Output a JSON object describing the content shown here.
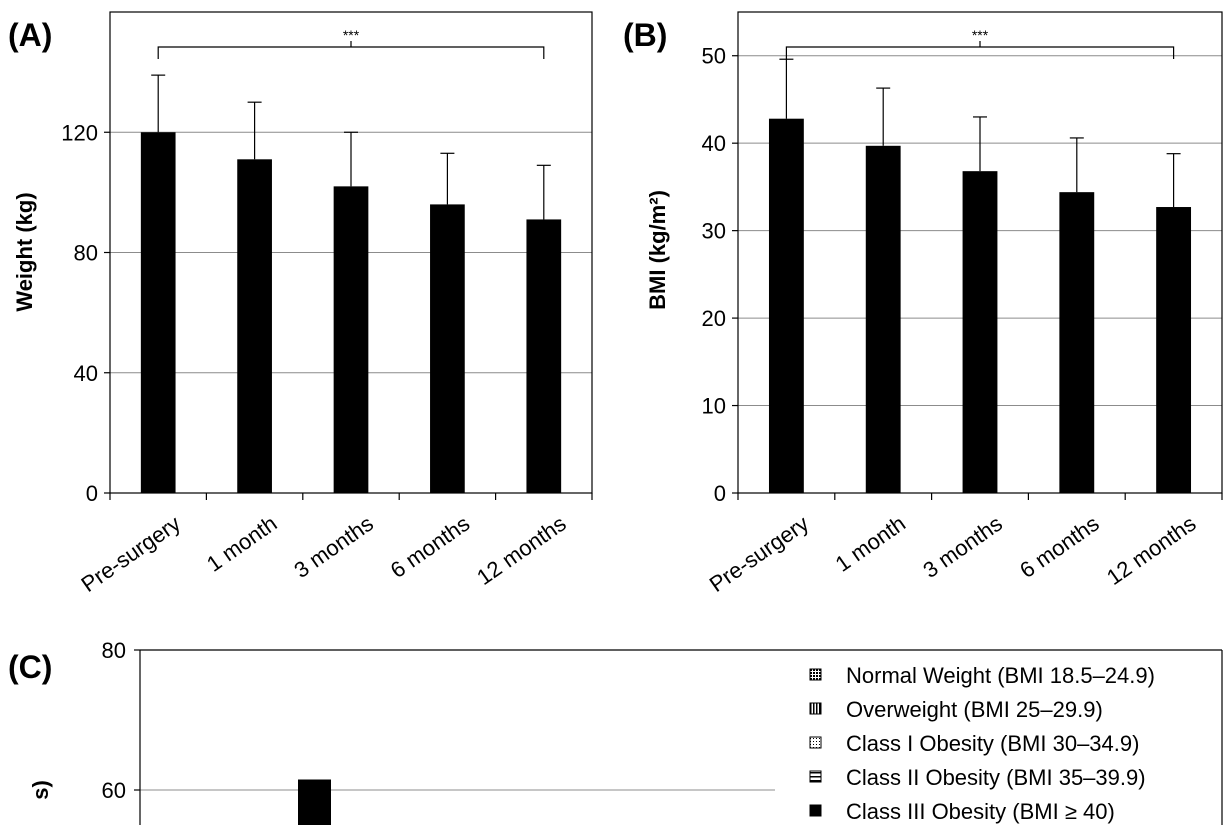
{
  "panels": {
    "a_label": "(A)",
    "b_label": "(B)",
    "c_label": "(C)"
  },
  "chart_data": [
    {
      "type": "bar",
      "panel": "(A)",
      "categories": [
        "Pre-surgery",
        "1 month",
        "3 months",
        "6 months",
        "12 months"
      ],
      "values": [
        120,
        111,
        102,
        96,
        91
      ],
      "errors": [
        19,
        19,
        18,
        17,
        18
      ],
      "ylabel": "Weight (kg)",
      "ylim": [
        0,
        160
      ],
      "yticks": [
        0,
        40,
        80,
        120
      ],
      "grid": true,
      "significance": {
        "label": "***",
        "from": "Pre-surgery",
        "to": "12 months"
      },
      "color": "#000000"
    },
    {
      "type": "bar",
      "panel": "(B)",
      "categories": [
        "Pre-surgery",
        "1 month",
        "3 months",
        "6 months",
        "12 months"
      ],
      "values": [
        42.8,
        39.7,
        36.8,
        34.4,
        32.7
      ],
      "errors": [
        6.8,
        6.6,
        6.2,
        6.2,
        6.1
      ],
      "ylabel": "BMI (kg/m²)",
      "ylim": [
        0,
        55
      ],
      "yticks": [
        0,
        10,
        20,
        30,
        40,
        50
      ],
      "grid": true,
      "significance": {
        "label": "***",
        "from": "Pre-surgery",
        "to": "12 months"
      },
      "color": "#000000"
    },
    {
      "type": "bar",
      "panel": "(C)",
      "yticks": [
        60,
        80
      ],
      "ylim_visible": [
        48,
        80
      ],
      "grid": true,
      "legend_position": "top-right",
      "legend": [
        {
          "label": "Normal Weight (BMI 18.5–24.9)",
          "pattern": "grid-dense"
        },
        {
          "label": "Overweight (BMI 25–29.9)",
          "pattern": "vertical-lines"
        },
        {
          "label": "Class I Obesity (BMI 30–34.9)",
          "pattern": "dotted"
        },
        {
          "label": "Class II Obesity (BMI 35–39.9)",
          "pattern": "horizontal-lines"
        },
        {
          "label": "Class III Obesity (BMI ≥ 40)",
          "pattern": "solid"
        }
      ],
      "visible_bars": [
        {
          "series": "Class III Obesity (BMI ≥ 40)",
          "value": 61.5
        }
      ]
    }
  ]
}
